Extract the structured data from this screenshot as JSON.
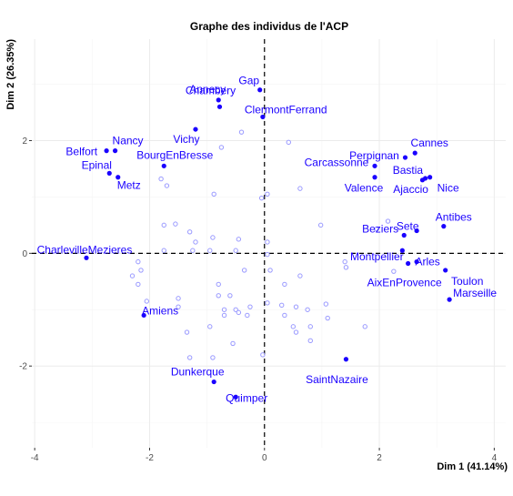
{
  "chart_data": {
    "type": "scatter",
    "title": "Graphe des individus de l'ACP",
    "xlabel": "Dim 1 (41.14%)",
    "ylabel": "Dim 2 (26.35%)",
    "xlim": [
      -4.05,
      4.2
    ],
    "ylim": [
      -3.45,
      3.8
    ],
    "xticks": [
      -4,
      -2,
      0,
      2,
      4
    ],
    "yticks": [
      -2,
      0,
      2
    ],
    "x_tick_labels": [
      "-4",
      "-2",
      "0",
      "2",
      "4"
    ],
    "y_tick_labels": [
      "-2",
      "0",
      "2"
    ],
    "grid": true,
    "reference_lines": {
      "x": 0,
      "y": 0,
      "style": "dashed"
    },
    "colors": {
      "highlight": "#1a00ff",
      "supplementary": "#9a9aff",
      "grid_major": "#ebebeb",
      "grid_minor": "#f5f5f5"
    },
    "labeled_points": [
      {
        "label": "Annecy",
        "x": -0.8,
        "y": 2.72
      },
      {
        "label": "Gap",
        "x": -0.08,
        "y": 2.9
      },
      {
        "label": "Chambery",
        "x": -0.78,
        "y": 2.6
      },
      {
        "label": "ClermontFerrand",
        "x": -0.03,
        "y": 2.42
      },
      {
        "label": "Vichy",
        "x": -1.2,
        "y": 2.2
      },
      {
        "label": "Nancy",
        "x": -2.6,
        "y": 1.82
      },
      {
        "label": "Belfort",
        "x": -2.75,
        "y": 1.82
      },
      {
        "label": "Epinal",
        "x": -2.7,
        "y": 1.42
      },
      {
        "label": "Metz",
        "x": -2.55,
        "y": 1.35
      },
      {
        "label": "BourgEnBresse",
        "x": -1.75,
        "y": 1.55
      },
      {
        "label": "Cannes",
        "x": 2.62,
        "y": 1.78
      },
      {
        "label": "Perpignan",
        "x": 2.45,
        "y": 1.7
      },
      {
        "label": "Carcassonne",
        "x": 1.92,
        "y": 1.55
      },
      {
        "label": "Bastia",
        "x": 2.75,
        "y": 1.3
      },
      {
        "label": "Valence",
        "x": 1.92,
        "y": 1.35
      },
      {
        "label": "Ajaccio",
        "x": 2.8,
        "y": 1.33
      },
      {
        "label": "Nice",
        "x": 2.88,
        "y": 1.35
      },
      {
        "label": "Sete",
        "x": 2.43,
        "y": 0.32
      },
      {
        "label": "Antibes",
        "x": 3.12,
        "y": 0.48
      },
      {
        "label": "Beziers",
        "x": 2.65,
        "y": 0.4
      },
      {
        "label": "Montpellier",
        "x": 2.4,
        "y": 0.05
      },
      {
        "label": "Arles",
        "x": 2.65,
        "y": -0.15
      },
      {
        "label": "AixEnProvence",
        "x": 2.5,
        "y": -0.18
      },
      {
        "label": "Toulon",
        "x": 3.15,
        "y": -0.3
      },
      {
        "label": "Marseille",
        "x": 3.22,
        "y": -0.82
      },
      {
        "label": "CharlevilleMezieres",
        "x": -3.1,
        "y": -0.08
      },
      {
        "label": "Amiens",
        "x": -2.1,
        "y": -1.1
      },
      {
        "label": "SaintNazaire",
        "x": 1.42,
        "y": -1.88
      },
      {
        "label": "Dunkerque",
        "x": -0.88,
        "y": -2.28
      },
      {
        "label": "Quimper",
        "x": -0.5,
        "y": -2.55
      }
    ],
    "unlabeled_points": [
      {
        "x": -0.75,
        "y": 1.88
      },
      {
        "x": -0.4,
        "y": 2.15
      },
      {
        "x": 0.42,
        "y": 1.97
      },
      {
        "x": -1.8,
        "y": 1.32
      },
      {
        "x": -1.7,
        "y": 1.2
      },
      {
        "x": -0.88,
        "y": 1.05
      },
      {
        "x": -0.05,
        "y": 0.98
      },
      {
        "x": 0.05,
        "y": 1.05
      },
      {
        "x": 0.62,
        "y": 1.15
      },
      {
        "x": 2.15,
        "y": 0.57
      },
      {
        "x": 1.95,
        "y": 0.43
      },
      {
        "x": 0.98,
        "y": 0.5
      },
      {
        "x": -1.75,
        "y": 0.5
      },
      {
        "x": -1.55,
        "y": 0.52
      },
      {
        "x": -1.3,
        "y": 0.38
      },
      {
        "x": -1.2,
        "y": 0.2
      },
      {
        "x": -0.9,
        "y": 0.28
      },
      {
        "x": -0.45,
        "y": 0.25
      },
      {
        "x": 0.05,
        "y": 0.2
      },
      {
        "x": -0.95,
        "y": 0.05
      },
      {
        "x": -0.5,
        "y": 0.05
      },
      {
        "x": 0.05,
        "y": -0.02
      },
      {
        "x": -1.75,
        "y": 0.05
      },
      {
        "x": -1.25,
        "y": 0.05
      },
      {
        "x": -2.2,
        "y": -0.15
      },
      {
        "x": -2.15,
        "y": -0.3
      },
      {
        "x": -2.3,
        "y": -0.4
      },
      {
        "x": -2.2,
        "y": -0.55
      },
      {
        "x": -2.05,
        "y": -0.85
      },
      {
        "x": -1.5,
        "y": -0.8
      },
      {
        "x": -1.5,
        "y": -0.95
      },
      {
        "x": -0.8,
        "y": -0.55
      },
      {
        "x": -0.35,
        "y": -0.3
      },
      {
        "x": 0.1,
        "y": -0.3
      },
      {
        "x": 0.35,
        "y": -0.55
      },
      {
        "x": 0.62,
        "y": -0.4
      },
      {
        "x": 1.42,
        "y": -0.25
      },
      {
        "x": 1.4,
        "y": -0.15
      },
      {
        "x": 2.25,
        "y": -0.32
      },
      {
        "x": -0.8,
        "y": -0.75
      },
      {
        "x": -0.6,
        "y": -0.75
      },
      {
        "x": -0.7,
        "y": -1.0
      },
      {
        "x": -0.5,
        "y": -1.0
      },
      {
        "x": -0.45,
        "y": -1.05
      },
      {
        "x": -0.25,
        "y": -0.95
      },
      {
        "x": -0.3,
        "y": -1.1
      },
      {
        "x": -0.7,
        "y": -1.1
      },
      {
        "x": 0.05,
        "y": -0.88
      },
      {
        "x": 0.3,
        "y": -0.92
      },
      {
        "x": 0.55,
        "y": -0.95
      },
      {
        "x": 0.75,
        "y": -1.0
      },
      {
        "x": 1.07,
        "y": -0.9
      },
      {
        "x": 0.35,
        "y": -1.1
      },
      {
        "x": 0.5,
        "y": -1.3
      },
      {
        "x": 0.55,
        "y": -1.4
      },
      {
        "x": 0.8,
        "y": -1.3
      },
      {
        "x": 1.1,
        "y": -1.15
      },
      {
        "x": 1.75,
        "y": -1.3
      },
      {
        "x": -1.35,
        "y": -1.4
      },
      {
        "x": -0.55,
        "y": -1.6
      },
      {
        "x": -0.95,
        "y": -1.3
      },
      {
        "x": -1.3,
        "y": -1.85
      },
      {
        "x": -0.9,
        "y": -1.85
      },
      {
        "x": -0.03,
        "y": -1.8
      },
      {
        "x": 0.8,
        "y": -1.55
      }
    ]
  }
}
